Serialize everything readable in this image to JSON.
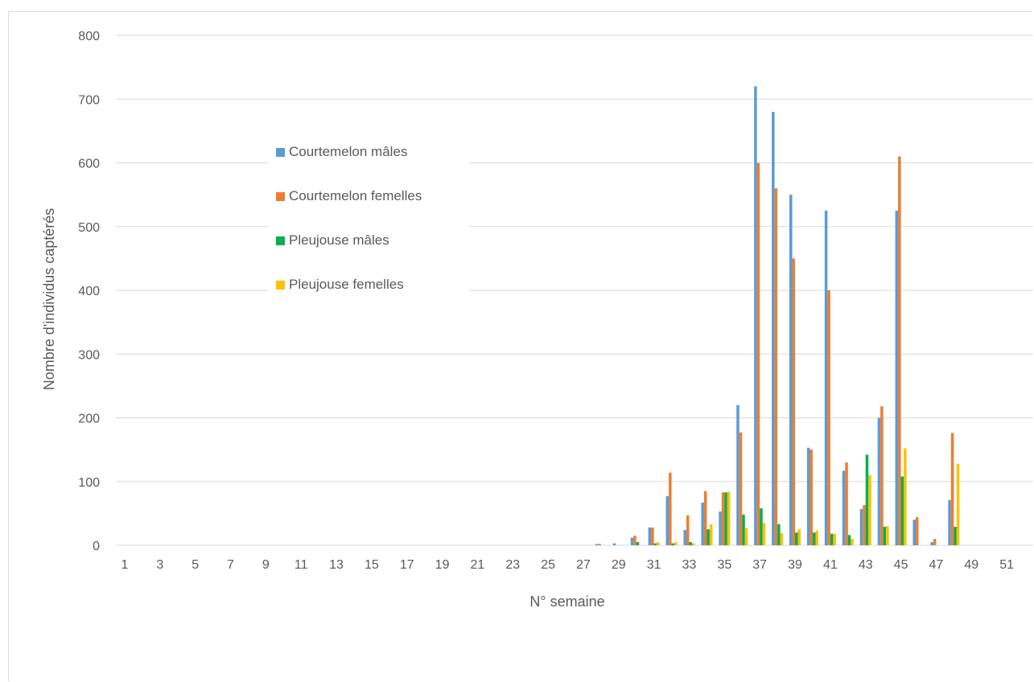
{
  "chart_data": {
    "type": "bar",
    "xlabel": "N° semaine",
    "ylabel": "Nombre d'individus captérés",
    "ylim": [
      0,
      800
    ],
    "y_ticks": [
      0,
      100,
      200,
      300,
      400,
      500,
      600,
      700,
      800
    ],
    "x_range": [
      1,
      52
    ],
    "x_tick_labels": [
      1,
      3,
      5,
      7,
      9,
      11,
      13,
      15,
      17,
      19,
      21,
      23,
      25,
      27,
      29,
      31,
      33,
      35,
      37,
      39,
      41,
      43,
      45,
      47,
      49,
      51
    ],
    "grid": true,
    "legend_position": "upper-left",
    "x": [
      28,
      29,
      30,
      31,
      32,
      33,
      34,
      35,
      36,
      37,
      38,
      39,
      40,
      41,
      42,
      43,
      44,
      45,
      46,
      47,
      48
    ],
    "series": [
      {
        "name": "Courtemelon mâles",
        "color": "#5B9BD5",
        "values": [
          2,
          3,
          12,
          28,
          77,
          24,
          67,
          53,
          220,
          720,
          680,
          550,
          153,
          525,
          117,
          57,
          200,
          525,
          40,
          5,
          71
        ]
      },
      {
        "name": "Courtemelon femelles",
        "color": "#ED7D31",
        "values": [
          2,
          0,
          15,
          28,
          114,
          47,
          85,
          83,
          177,
          600,
          560,
          450,
          150,
          400,
          130,
          63,
          218,
          610,
          44,
          10,
          176
        ]
      },
      {
        "name": "Pleujouse mâles",
        "color": "#00B050",
        "values": [
          0,
          0,
          5,
          3,
          3,
          5,
          25,
          83,
          48,
          58,
          33,
          20,
          20,
          18,
          16,
          142,
          29,
          108,
          0,
          0,
          29
        ]
      },
      {
        "name": "Pleujouse femelles",
        "color": "#FFC000",
        "values": [
          0,
          0,
          0,
          5,
          5,
          3,
          33,
          84,
          27,
          35,
          19,
          25,
          23,
          18,
          10,
          110,
          30,
          152,
          0,
          0,
          128
        ]
      }
    ]
  }
}
